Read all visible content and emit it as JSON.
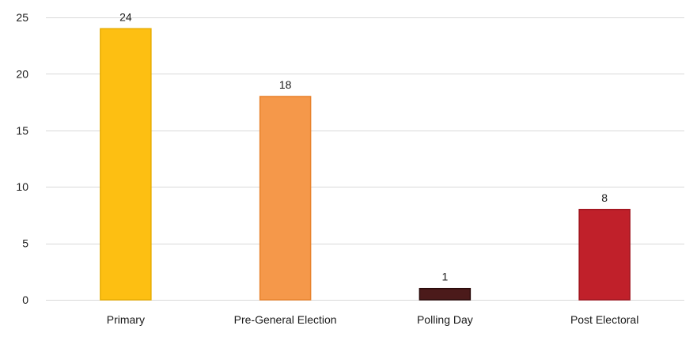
{
  "chart_data": {
    "type": "bar",
    "categories": [
      "Primary",
      "Pre-General Election",
      "Polling Day",
      "Post Electoral"
    ],
    "values": [
      24,
      18,
      1,
      8
    ],
    "data_labels": [
      "24",
      "18",
      "1",
      "8"
    ],
    "bar_colors": [
      "#FDBF12",
      "#F5984A",
      "#4B1A1A",
      "#C0202A"
    ],
    "bar_edge_colors": [
      "#E8AC00",
      "#E9822C",
      "#2A0A0A",
      "#A0141E"
    ],
    "ylim": [
      0,
      25
    ],
    "yticks": [
      0,
      5,
      10,
      15,
      20,
      25
    ],
    "ytick_labels": [
      "0",
      "5",
      "10",
      "15",
      "20",
      "25"
    ],
    "grid": true,
    "grid_color": "#D9D9D9",
    "legend": false
  }
}
